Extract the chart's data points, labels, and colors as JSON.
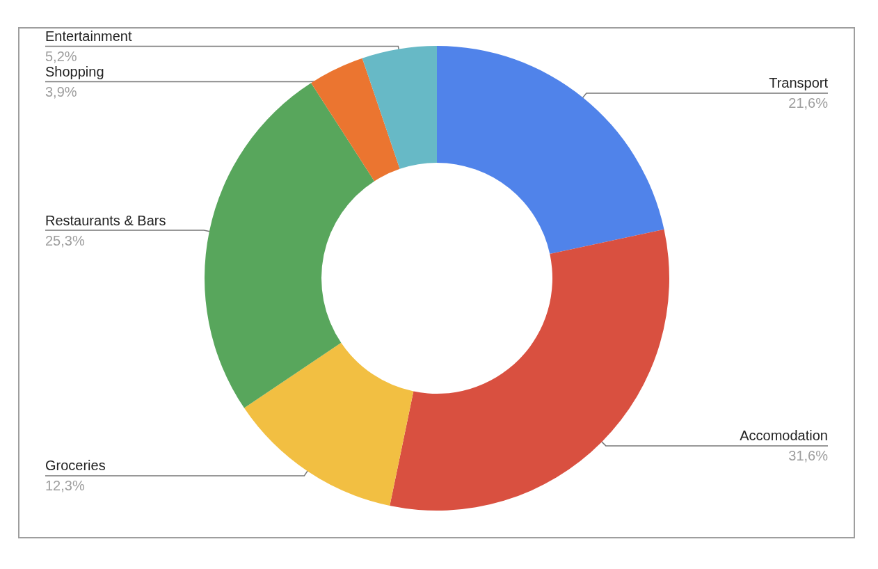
{
  "chart_data": {
    "type": "donut",
    "categories": [
      "Transport",
      "Accomodation",
      "Groceries",
      "Restaurants & Bars",
      "Shopping",
      "Entertainment"
    ],
    "values": [
      21.6,
      31.6,
      12.3,
      25.3,
      3.9,
      5.2
    ],
    "value_labels": [
      "21,6%",
      "31,6%",
      "12,3%",
      "25,3%",
      "3,9%",
      "5,2%"
    ],
    "colors": [
      "#5083ea",
      "#d95040",
      "#f2bf42",
      "#58a65c",
      "#eb7530",
      "#67b9c6"
    ]
  }
}
